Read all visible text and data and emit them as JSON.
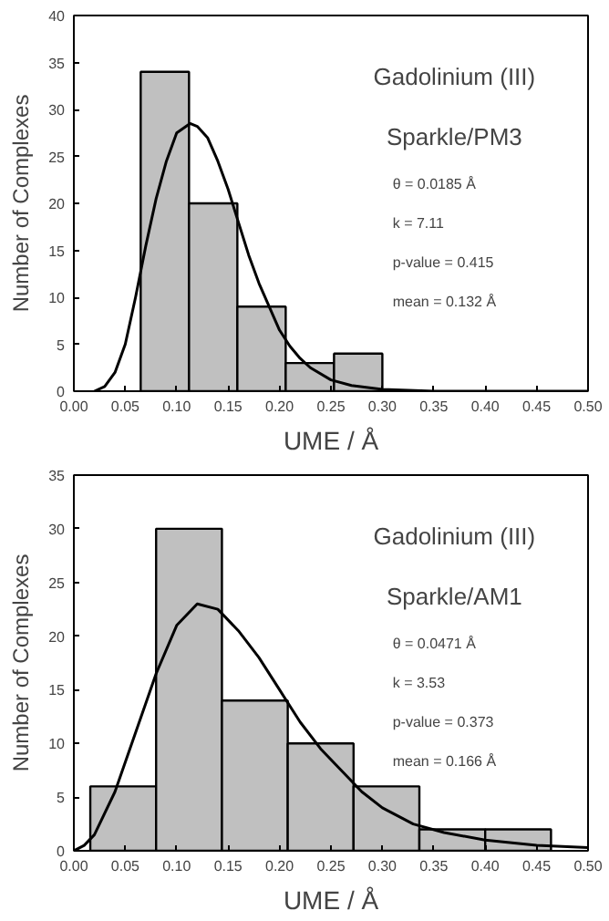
{
  "chart_data": [
    {
      "type": "histogram",
      "title": "Gadolinium (III)",
      "subtitle": "Sparkle/PM3",
      "xlabel": "UME / Å",
      "ylabel": "Number of Complexes",
      "bins": [
        0.065,
        0.112,
        0.159,
        0.206,
        0.253,
        0.3
      ],
      "values": [
        34,
        20,
        9,
        3,
        4
      ],
      "color": "#c0c0c0",
      "series": [
        {
          "type": "line",
          "color": "#000000",
          "x": [
            0.02,
            0.03,
            0.04,
            0.05,
            0.06,
            0.07,
            0.08,
            0.09,
            0.1,
            0.113,
            0.12,
            0.13,
            0.14,
            0.15,
            0.16,
            0.17,
            0.18,
            0.19,
            0.2,
            0.21,
            0.22,
            0.23,
            0.25,
            0.27,
            0.3,
            0.35,
            0.4,
            0.5
          ],
          "values": [
            0,
            0.5,
            2,
            5,
            10,
            15.5,
            20.5,
            24.5,
            27.5,
            28.5,
            28.2,
            27,
            24.5,
            21.5,
            18,
            14.5,
            11.5,
            9,
            6.5,
            4.8,
            3.5,
            2.5,
            1.2,
            0.6,
            0.2,
            0,
            0,
            0
          ]
        }
      ],
      "annotations": [
        "θ = 0.0185 Å",
        "k = 7.11",
        "p-value = 0.415",
        "mean = 0.132 Å"
      ],
      "xlim": [
        0,
        0.5
      ],
      "ylim": [
        0,
        40
      ],
      "xticks": [
        {
          "value": 0,
          "label": "0.00"
        },
        {
          "value": 0.05,
          "label": "0.05"
        },
        {
          "value": 0.1,
          "label": "0.10"
        },
        {
          "value": 0.15,
          "label": "0.15"
        },
        {
          "value": 0.2,
          "label": "0.20"
        },
        {
          "value": 0.25,
          "label": "0.25"
        },
        {
          "value": 0.3,
          "label": "0.30"
        },
        {
          "value": 0.35,
          "label": "0.35"
        },
        {
          "value": 0.4,
          "label": "0.40"
        },
        {
          "value": 0.45,
          "label": "0.45"
        },
        {
          "value": 0.5,
          "label": "0.50"
        }
      ],
      "yticks": [
        0,
        5,
        10,
        15,
        20,
        25,
        30,
        35,
        40
      ],
      "grid": false
    },
    {
      "type": "histogram",
      "title": "Gadolinium (III)",
      "subtitle": "Sparkle/AM1",
      "xlabel": "UME / Å",
      "ylabel": "Number of Complexes",
      "bins": [
        0.016,
        0.08,
        0.144,
        0.208,
        0.272,
        0.336,
        0.4,
        0.464
      ],
      "values": [
        6,
        30,
        14,
        10,
        6,
        2,
        2
      ],
      "color": "#c0c0c0",
      "series": [
        {
          "type": "line",
          "color": "#000000",
          "x": [
            0.0,
            0.01,
            0.02,
            0.04,
            0.06,
            0.08,
            0.1,
            0.12,
            0.14,
            0.16,
            0.18,
            0.2,
            0.22,
            0.24,
            0.26,
            0.28,
            0.3,
            0.33,
            0.36,
            0.4,
            0.45,
            0.5
          ],
          "values": [
            0,
            0.5,
            1.5,
            5.5,
            11,
            16.5,
            21,
            23,
            22.5,
            20.5,
            18,
            15,
            12,
            9.5,
            7.5,
            5.5,
            4,
            2.5,
            1.7,
            1,
            0.5,
            0.3
          ]
        }
      ],
      "annotations": [
        "θ = 0.0471 Å",
        "k = 3.53",
        "p-value = 0.373",
        "mean = 0.166 Å"
      ],
      "xlim": [
        0,
        0.5
      ],
      "ylim": [
        0,
        35
      ],
      "xticks": [
        {
          "value": 0,
          "label": "0.00"
        },
        {
          "value": 0.05,
          "label": "0.05"
        },
        {
          "value": 0.1,
          "label": "0.10"
        },
        {
          "value": 0.15,
          "label": "0.15"
        },
        {
          "value": 0.2,
          "label": "0.20"
        },
        {
          "value": 0.25,
          "label": "0.25"
        },
        {
          "value": 0.3,
          "label": "0.30"
        },
        {
          "value": 0.35,
          "label": "0.35"
        },
        {
          "value": 0.4,
          "label": "0.40"
        },
        {
          "value": 0.45,
          "label": "0.45"
        },
        {
          "value": 0.5,
          "label": "0.50"
        }
      ],
      "yticks": [
        0,
        5,
        10,
        15,
        20,
        25,
        30,
        35
      ],
      "grid": false
    }
  ]
}
